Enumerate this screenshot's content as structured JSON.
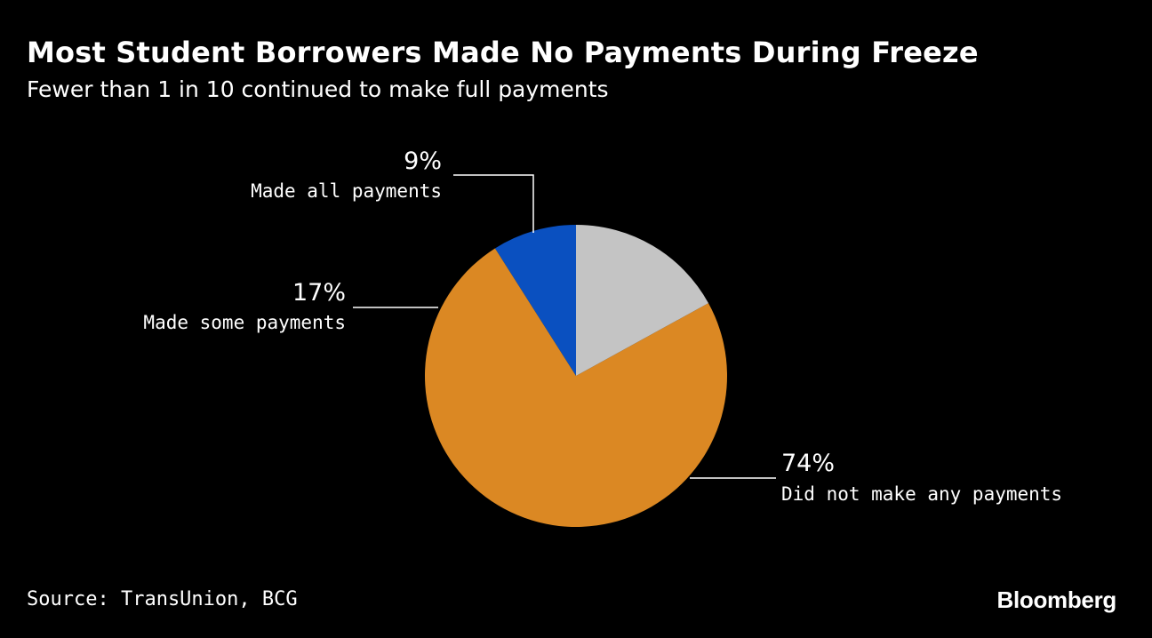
{
  "header": {
    "title": "Most Student Borrowers Made No Payments During Freeze",
    "subtitle": "Fewer than 1 in 10 continued to make full payments"
  },
  "chart_data": {
    "type": "pie",
    "slices": [
      {
        "label": "Made all payments",
        "value": 9,
        "value_label": "9%",
        "color": "#0a50c0"
      },
      {
        "label": "Did not make any payments",
        "value": 74,
        "value_label": "74%",
        "color": "#db8823"
      },
      {
        "label": "Made some payments",
        "value": 17,
        "value_label": "17%",
        "color": "#c4c4c4"
      }
    ],
    "start_angle_deg": 0,
    "direction": "counterclockwise"
  },
  "footer": {
    "source": "Source: TransUnion, BCG",
    "brand": "Bloomberg"
  }
}
